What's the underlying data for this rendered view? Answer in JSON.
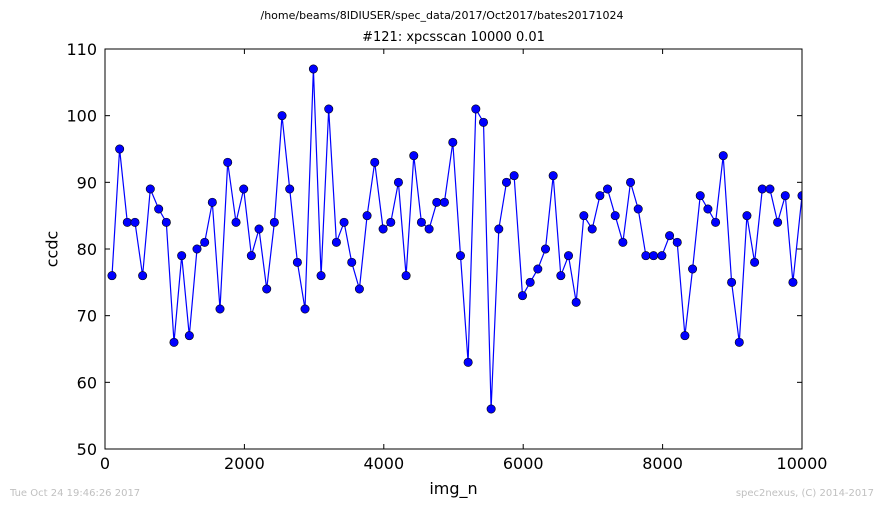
{
  "header": {
    "path": "/home/beams/8IDIUSER/spec_data/2017/Oct2017/bates20171024"
  },
  "footer": {
    "timestamp": "Tue Oct 24 19:46:26 2017",
    "credit": "spec2nexus, (C) 2014-2017"
  },
  "chart_data": {
    "type": "line",
    "title": "#121: xpcsscan 10000 0.01",
    "xlabel": "img_n",
    "ylabel": "ccdc",
    "xlim": [
      0,
      10000
    ],
    "ylim": [
      50,
      110
    ],
    "xticks": [
      0,
      2000,
      4000,
      6000,
      8000,
      10000
    ],
    "yticks": [
      50,
      60,
      70,
      80,
      90,
      100,
      110
    ],
    "marker": "circle",
    "line_color": "#0000ff",
    "marker_color": "#0000ff",
    "grid": false,
    "series": [
      {
        "x": [
          100,
          210,
          320,
          430,
          540,
          650,
          770,
          880,
          990,
          1100,
          1210,
          1320,
          1430,
          1540,
          1650,
          1760,
          1880,
          1990,
          2100,
          2210,
          2320,
          2430,
          2540,
          2650,
          2760,
          2870,
          2990,
          3100,
          3210,
          3320,
          3430,
          3540,
          3650,
          3760,
          3870,
          3990,
          4100,
          4210,
          4320,
          4430,
          4540,
          4650,
          4760,
          4870,
          4990,
          5100,
          5210,
          5320,
          5430,
          5540,
          5650,
          5760,
          5870,
          5990,
          6100,
          6210,
          6320,
          6430,
          6540,
          6650,
          6760,
          6870,
          6990,
          7100,
          7210,
          7320,
          7430,
          7540,
          7650,
          7760,
          7870,
          7990,
          8100,
          8210,
          8320,
          8430,
          8540,
          8650,
          8760,
          8870,
          8990,
          9100,
          9210,
          9320,
          9430,
          9540,
          9650,
          9760,
          9870,
          10000
        ],
        "y": [
          76,
          95,
          84,
          84,
          76,
          89,
          86,
          84,
          66,
          79,
          67,
          80,
          81,
          87,
          71,
          93,
          84,
          89,
          79,
          83,
          74,
          84,
          100,
          89,
          78,
          71,
          107,
          76,
          101,
          81,
          84,
          78,
          74,
          85,
          93,
          83,
          84,
          90,
          76,
          94,
          84,
          83,
          87,
          87,
          96,
          79,
          63,
          101,
          99,
          56,
          83,
          90,
          91,
          73,
          75,
          77,
          80,
          91,
          76,
          79,
          72,
          85,
          83,
          88,
          89,
          85,
          81,
          90,
          86,
          79,
          79,
          79,
          82,
          81,
          67,
          77,
          88,
          86,
          84,
          94,
          75,
          66,
          85,
          78,
          89,
          89,
          84,
          88,
          75,
          88
        ]
      }
    ]
  }
}
